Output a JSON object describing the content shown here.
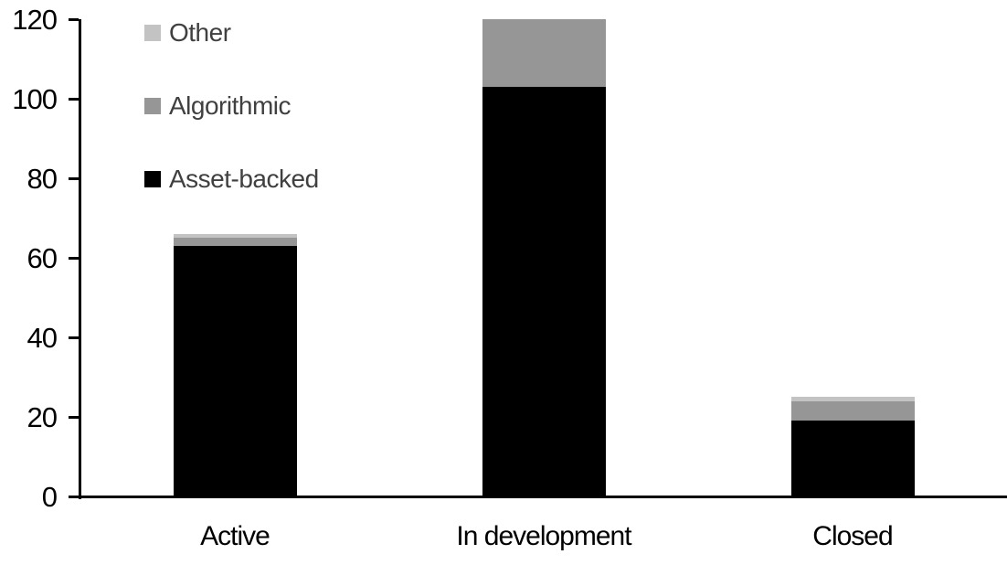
{
  "chart_data": {
    "type": "bar",
    "stacked": true,
    "title": "",
    "xlabel": "",
    "ylabel": "",
    "categories": [
      "Active",
      "In development",
      "Closed"
    ],
    "series": [
      {
        "name": "Asset-backed",
        "color": "#000000",
        "values": [
          63,
          103,
          19
        ]
      },
      {
        "name": "Algorithmic",
        "color": "#969696",
        "values": [
          2,
          17,
          5
        ]
      },
      {
        "name": "Other",
        "color": "#c3c3c3",
        "values": [
          1,
          0,
          1
        ]
      }
    ],
    "stack_totals": [
      66,
      120,
      25
    ],
    "ylim": [
      0,
      120
    ],
    "yticks": [
      0,
      20,
      40,
      60,
      80,
      100,
      120
    ],
    "grid": false,
    "axis_color": "#000000",
    "background_color": "#ffffff",
    "legend": {
      "position": "top-left",
      "order_top_to_bottom": [
        "Other",
        "Algorithmic",
        "Asset-backed"
      ],
      "text_color": "#404040"
    }
  }
}
